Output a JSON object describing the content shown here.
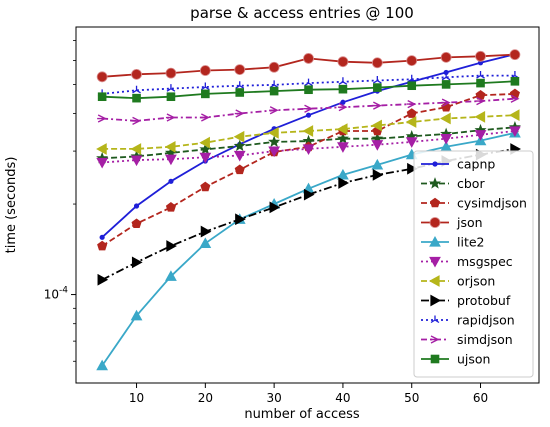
{
  "chart_data": {
    "type": "line",
    "title": "parse & access entries @ 100",
    "xlabel": "number of access",
    "ylabel": "time (seconds)",
    "x_ticks": [
      10,
      20,
      30,
      40,
      50,
      60
    ],
    "y_tick_label": "10^{-4}",
    "y_scale": "log",
    "xlim": [
      1.2,
      68.5
    ],
    "ylim": [
      5.08e-05,
      0.000776
    ],
    "grid": false,
    "legend_position": "lower-right",
    "x": [
      5,
      10,
      15,
      20,
      25,
      30,
      35,
      40,
      45,
      50,
      55,
      60,
      65
    ],
    "series": [
      {
        "name": "capnp",
        "color": "#1f1fd8",
        "dash": "",
        "marker": "dot",
        "values": [
          0.000155,
          0.000197,
          0.000238,
          0.000278,
          0.000316,
          0.000356,
          0.000395,
          0.000436,
          0.000475,
          0.00051,
          0.000548,
          0.00059,
          0.00063
        ]
      },
      {
        "name": "cbor",
        "color": "#1f5a1f",
        "dash": "6,3",
        "marker": "star",
        "values": [
          0.000284,
          0.000288,
          0.000296,
          0.000304,
          0.000312,
          0.000322,
          0.000324,
          0.00033,
          0.00033,
          0.000336,
          0.000342,
          0.000352,
          0.00036
        ]
      },
      {
        "name": "cysimdjson",
        "color": "#b3261e",
        "dash": "6,3",
        "marker": "pentagon",
        "values": [
          0.000145,
          0.000172,
          0.000195,
          0.000228,
          0.00026,
          0.000298,
          0.00031,
          0.00035,
          0.00035,
          0.0004,
          0.00042,
          0.00046,
          0.000465
        ]
      },
      {
        "name": "json",
        "color": "#b3261e",
        "dash": "",
        "marker": "circle",
        "values": [
          0.00053,
          0.00054,
          0.000545,
          0.000556,
          0.00056,
          0.00057,
          0.00061,
          0.000595,
          0.00059,
          0.0006,
          0.000615,
          0.00062,
          0.000628
        ]
      },
      {
        "name": "lite2",
        "color": "#3aa8c8",
        "dash": "",
        "marker": "triangle-up",
        "values": [
          5.8e-05,
          8.5e-05,
          0.000115,
          0.000148,
          0.000178,
          0.0002,
          0.000225,
          0.00025,
          0.00027,
          0.000292,
          0.00031,
          0.000325,
          0.000345
        ]
      },
      {
        "name": "msgspec",
        "color": "#a51fa5",
        "dash": "2,3",
        "marker": "triangle-down",
        "values": [
          0.000275,
          0.00028,
          0.000282,
          0.000286,
          0.00029,
          0.0003,
          0.000305,
          0.00031,
          0.000315,
          0.000322,
          0.00033,
          0.00034,
          0.00035
        ]
      },
      {
        "name": "orjson",
        "color": "#b5b51a",
        "dash": "6,3",
        "marker": "triangle-left",
        "values": [
          0.000305,
          0.000305,
          0.00031,
          0.00032,
          0.000335,
          0.000345,
          0.00035,
          0.000355,
          0.000365,
          0.000375,
          0.000385,
          0.00039,
          0.000395
        ]
      },
      {
        "name": "protobuf",
        "color": "#000000",
        "dash": "8,3,2,3",
        "marker": "triangle-right",
        "values": [
          0.000112,
          0.000128,
          0.000145,
          0.000162,
          0.000178,
          0.000195,
          0.000215,
          0.000235,
          0.00025,
          0.000262,
          0.000278,
          0.000292,
          0.000305
        ]
      },
      {
        "name": "rapidjson",
        "color": "#1f1fd8",
        "dash": "2,3",
        "marker": "tri",
        "values": [
          0.000465,
          0.000478,
          0.000484,
          0.00049,
          0.000495,
          0.000498,
          0.000505,
          0.00051,
          0.000515,
          0.00052,
          0.000528,
          0.000535,
          0.000535
        ]
      },
      {
        "name": "simdjson",
        "color": "#a51fa5",
        "dash": "6,3,2,3",
        "marker": "arrow",
        "values": [
          0.000385,
          0.000378,
          0.000388,
          0.000388,
          0.0004,
          0.00041,
          0.000415,
          0.00042,
          0.000425,
          0.00043,
          0.000435,
          0.00044,
          0.000448
        ]
      },
      {
        "name": "ujson",
        "color": "#1f7a1f",
        "dash": "",
        "marker": "square",
        "values": [
          0.000455,
          0.00045,
          0.000455,
          0.000465,
          0.00047,
          0.000475,
          0.00048,
          0.000482,
          0.000488,
          0.000495,
          0.0005,
          0.000505,
          0.000512
        ]
      }
    ]
  }
}
